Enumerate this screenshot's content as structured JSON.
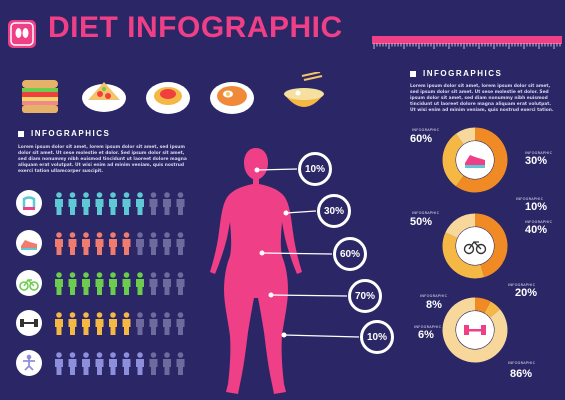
{
  "header": {
    "title": "DIET INFOGRAPHIC"
  },
  "colors": {
    "background": "#2b2766",
    "pink": "#ef3f86",
    "orange": "#f59a24",
    "yellow": "#f5c46a",
    "teal": "#5ec8d4",
    "coral": "#ef7c6e",
    "green": "#6bcc4d",
    "gold": "#f5b845",
    "lavender": "#8e8fdc",
    "grey_person": "#6e6a9d"
  },
  "food_icons": [
    "sandwich-icon",
    "pizza-icon",
    "spaghetti-icon",
    "fried-rice-icon",
    "noodle-soup-icon"
  ],
  "left_section": {
    "heading": "INFOGRAPHICS",
    "body": "Lorem ipsum dolor sit amet, lorem ipsum dolor sit amet, sed ipsum dolor sit amet. Ut sese molestie et dolor. Sed ipsum dolor sit amet, sed diam nonummy nibh euismod tincidunt ut laoreet dolore magna aliquam erat volutpat. Ut wisi enim ad minim veniam, quis nostrud exerci tation ullamcorper suscipit."
  },
  "people_rows": [
    {
      "icon": "scale-icon",
      "color": "#5ec8d4",
      "filled": 7,
      "total": 10
    },
    {
      "icon": "sneaker-icon",
      "color": "#ef7c6e",
      "filled": 6,
      "total": 10
    },
    {
      "icon": "bicycle-icon",
      "color": "#6bcc4d",
      "filled": 7,
      "total": 10
    },
    {
      "icon": "dumbbell-icon",
      "color": "#f5b845",
      "filled": 6,
      "total": 10
    },
    {
      "icon": "yoga-icon",
      "color": "#8e8fdc",
      "filled": 7,
      "total": 10
    }
  ],
  "body_callouts": [
    {
      "label": "10%"
    },
    {
      "label": "30%"
    },
    {
      "label": "60%"
    },
    {
      "label": "70%"
    },
    {
      "label": "10%"
    }
  ],
  "right_section": {
    "heading": "INFOGRAPHICS",
    "body": "Lorem ipsum dolor sit amet, lorem ipsum dolor sit amet, sed ipsum dolor sit amet. Ut sese molestie et dolor. Sed ipsum dolor sit amet, sed diam nonummy nibh euismod tincidunt ut laoreet dolore magna aliquam erat volutpat. Ut wisi enim ad minim veniam, quis nostrud exerci tation."
  },
  "rings": [
    {
      "icon": "sneaker-icon",
      "segments": [
        60,
        30,
        10
      ],
      "labels": [
        "60%",
        "30%",
        "10%"
      ],
      "small_caption": "INFOGRAPHIC",
      "body": "Lorem ipsum dolor sit amet, sed ipsum dolor sit amet, sed diam nonummy nibh euismod tincidunt ut laoreet dolore magna aliquam erat volutpat."
    },
    {
      "icon": "bicycle-icon",
      "segments": [
        50,
        40,
        20
      ],
      "labels": [
        "50%",
        "40%",
        "20%"
      ],
      "small_caption": "INFOGRAPHIC",
      "body": "Lorem ipsum dolor sit amet, sed ipsum dolor sit amet, sed diam nonummy nibh euismod tincidunt ut laoreet dolore magna aliquam erat volutpat."
    },
    {
      "icon": "dumbbell-icon",
      "segments": [
        8,
        6,
        86
      ],
      "labels": [
        "8%",
        "6%",
        "86%"
      ],
      "small_caption": "INFOGRAPHIC",
      "body": "Lorem ipsum dolor sit amet, sed ipsum dolor sit amet, sed diam nonummy nibh euismod tincidunt ut laoreet dolore magna aliquam erat volutpat."
    }
  ]
}
